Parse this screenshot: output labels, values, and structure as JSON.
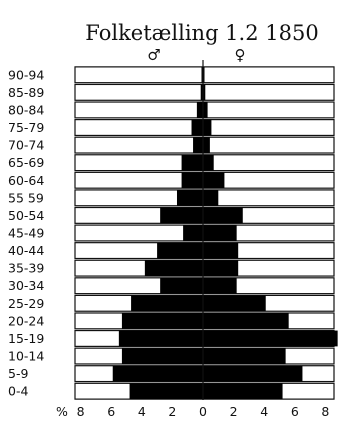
{
  "chart_data": {
    "type": "bar",
    "subtype": "population-pyramid",
    "title": "Folketælling 1.2 1850",
    "male_symbol": "♂",
    "female_symbol": "♀",
    "axis_unit": "%",
    "x_ticks": [
      {
        "value": -8,
        "label": "8"
      },
      {
        "value": -6,
        "label": "6"
      },
      {
        "value": -4,
        "label": "4"
      },
      {
        "value": -2,
        "label": "2"
      },
      {
        "value": 0,
        "label": "0"
      },
      {
        "value": 2,
        "label": "2"
      },
      {
        "value": 4,
        "label": "4"
      },
      {
        "value": 6,
        "label": "6"
      },
      {
        "value": 8,
        "label": "8"
      }
    ],
    "xlim": [
      -8,
      8
    ],
    "categories": [
      "90-94",
      "85-89",
      "80-84",
      "75-79",
      "70-74",
      "65-69",
      "60-64",
      "55 59",
      "50-54",
      "45-49",
      "40-44",
      "35-39",
      "30-34",
      "25-29",
      "20-24",
      "15-19",
      "10-14",
      "5-9",
      "0-4"
    ],
    "series": [
      {
        "side": "left",
        "values": [
          0.05,
          0.15,
          0.4,
          0.75,
          0.65,
          1.4,
          1.4,
          1.7,
          2.8,
          1.3,
          3.0,
          3.8,
          2.8,
          4.7,
          5.3,
          5.5,
          5.3,
          5.9,
          4.8
        ]
      },
      {
        "side": "right",
        "values": [
          0.05,
          0.15,
          0.3,
          0.55,
          0.45,
          0.7,
          1.4,
          1.0,
          2.6,
          2.2,
          2.3,
          2.3,
          2.2,
          4.1,
          5.6,
          8.8,
          5.4,
          6.5,
          5.2
        ]
      }
    ],
    "grid": false,
    "legend": "none"
  }
}
